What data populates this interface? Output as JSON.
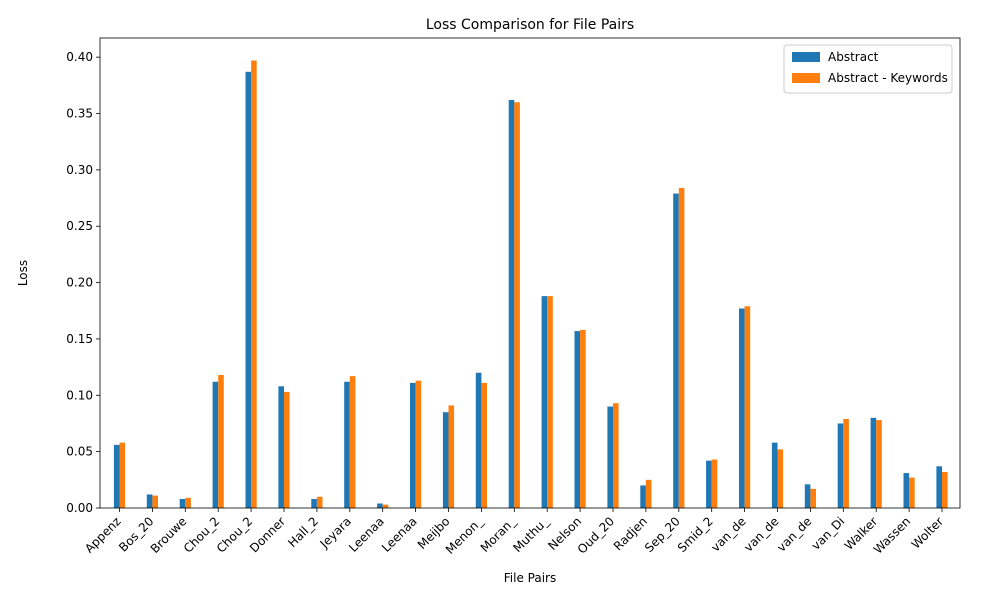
{
  "chart_data": {
    "type": "bar",
    "title": "Loss Comparison for File Pairs",
    "xlabel": "File Pairs",
    "ylabel": "Loss",
    "ylim": [
      0,
      0.417
    ],
    "yticks": [
      "0.00",
      "0.05",
      "0.10",
      "0.15",
      "0.20",
      "0.25",
      "0.30",
      "0.35",
      "0.40"
    ],
    "categories": [
      "Appenz",
      "Bos_20",
      "Brouwe",
      "Chou_2",
      "Chou_2",
      "Donner",
      "Hall_2",
      "Jeyara",
      "Leenaa",
      "Leenaa",
      "Meijbo",
      "Menon_",
      "Moran_",
      "Muthu_",
      "Nelson",
      "Oud_20",
      "Radjen",
      "Sep_20",
      "Smid_2",
      "van_de",
      "van_de",
      "van_de",
      "van_Di",
      "Walker",
      "Wassen",
      "Wolter"
    ],
    "series": [
      {
        "name": "Abstract",
        "color": "#1f77b4",
        "values": [
          0.056,
          0.012,
          0.008,
          0.112,
          0.387,
          0.108,
          0.008,
          0.112,
          0.004,
          0.111,
          0.085,
          0.12,
          0.362,
          0.188,
          0.157,
          0.09,
          0.02,
          0.279,
          0.042,
          0.177,
          0.058,
          0.021,
          0.075,
          0.08,
          0.031,
          0.037
        ]
      },
      {
        "name": "Abstract - Keywords",
        "color": "#ff7f0e",
        "values": [
          0.058,
          0.011,
          0.009,
          0.118,
          0.397,
          0.103,
          0.01,
          0.117,
          0.003,
          0.113,
          0.091,
          0.111,
          0.36,
          0.188,
          0.158,
          0.093,
          0.025,
          0.284,
          0.043,
          0.179,
          0.052,
          0.017,
          0.079,
          0.078,
          0.027,
          0.032
        ]
      }
    ],
    "grid": false,
    "legend_position": "top-right"
  }
}
